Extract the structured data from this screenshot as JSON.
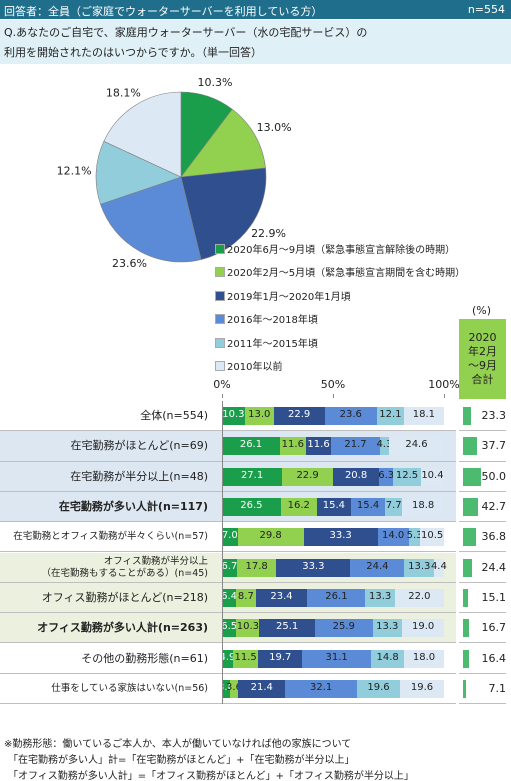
{
  "header": {
    "title": "回答者：全員（ご家庭でウォーターサーバーを利用している方）",
    "n": "n=554"
  },
  "question": [
    "Q.あなたのご自宅で、家庭用ウォーターサーバー（水の宅配サービス）の",
    "利用を開始されたのはいつからですか。（単一回答）"
  ],
  "chart_data": [
    {
      "type": "pie",
      "values": [
        10.3,
        13.0,
        22.9,
        23.6,
        12.1,
        18.1
      ],
      "value_labels": [
        "10.3%",
        "13.0%",
        "22.9%",
        "23.6%",
        "12.1%",
        "18.1%"
      ],
      "colors": [
        "#1b9e4b",
        "#92d050",
        "#2f4f8f",
        "#5b8ad6",
        "#92cddc",
        "#dce9f5"
      ]
    },
    {
      "type": "stacked_bar",
      "orientation": "horizontal",
      "categories": [
        "全体(n=554)",
        "在宅勤務がほとんど(n=69)",
        "在宅勤務が半分以上(n=48)",
        "在宅勤務が多い人計(n=117)",
        "在宅勤務とオフィス勤務が半々くらい(n=57)",
        "オフィス勤務が半分以上\n（在宅勤務もすることがある）(n=45)",
        "オフィス勤務がほとんど(n=218)",
        "オフィス勤務が多い人計(n=263)",
        "その他の勤務形態(n=61)",
        "仕事をしている家族はいない(n=56)"
      ],
      "bold": [
        false,
        false,
        false,
        true,
        false,
        false,
        false,
        true,
        false,
        false
      ],
      "row_colors": [
        "#ffffff",
        "#dde7f1",
        "#dde7f1",
        "#dde7f1",
        "#ffffff",
        "#ebf1de",
        "#ebf1de",
        "#ebf1de",
        "#ffffff",
        "#ffffff"
      ],
      "series": [
        {
          "name": "2020年6月～9月頃（緊急事態宣言解除後の時期）",
          "color": "#1b9e4b",
          "values": [
            10.3,
            26.1,
            27.1,
            26.5,
            7.0,
            6.7,
            6.4,
            6.5,
            4.9,
            3.6
          ],
          "value_labels": [
            "10.3",
            "26.1",
            "27.1",
            "26.5",
            "7.0",
            "6.7",
            "6.4",
            "6.5",
            "4.9",
            "3.6"
          ]
        },
        {
          "name": "2020年2月～5月頃（緊急事態宣言期間を含む時期）",
          "color": "#92d050",
          "values": [
            13.0,
            11.6,
            22.9,
            16.2,
            29.8,
            17.8,
            8.7,
            10.3,
            11.5,
            3.6
          ],
          "value_labels": [
            "13.0",
            "11.6",
            "22.9",
            "16.2",
            "29.8",
            "17.8",
            "8.7",
            "10.3",
            "11.5",
            "3.6"
          ]
        },
        {
          "name": "2019年1月～2020年1月頃",
          "color": "#2f4f8f",
          "values": [
            22.9,
            11.6,
            20.8,
            15.4,
            33.3,
            33.3,
            23.4,
            25.1,
            19.7,
            21.4
          ],
          "value_labels": [
            "22.9",
            "11.6",
            "20.8",
            "15.4",
            "33.3",
            "33.3",
            "23.4",
            "25.1",
            "19.7",
            "21.4"
          ]
        },
        {
          "name": "2016年～2018年頃",
          "color": "#5b8ad6",
          "values": [
            23.6,
            21.7,
            6.3,
            15.4,
            14.0,
            24.4,
            26.1,
            25.9,
            31.1,
            32.1
          ],
          "value_labels": [
            "23.6",
            "21.7",
            "6.3",
            "15.4",
            "14.0",
            "24.4",
            "26.1",
            "25.9",
            "31.1",
            "32.1"
          ]
        },
        {
          "name": "2011年～2015年頃",
          "color": "#92cddc",
          "values": [
            12.1,
            4.3,
            12.5,
            7.7,
            5.3,
            13.3,
            13.3,
            13.3,
            14.8,
            19.6
          ],
          "value_labels": [
            "12.1",
            "4.3",
            "12.5",
            "7.7",
            "5.3",
            "13.3",
            "13.3",
            "13.3",
            "14.8",
            "19.6"
          ]
        },
        {
          "name": "2010年以前",
          "color": "#dce9f5",
          "values": [
            18.1,
            24.6,
            10.4,
            18.8,
            10.5,
            4.4,
            22.0,
            19.0,
            18.0,
            19.6
          ],
          "value_labels": [
            "18.1",
            "24.6",
            "10.4",
            "18.8",
            "10.5",
            "4.4",
            "22.0",
            "19.0",
            "18.0",
            "19.6"
          ]
        }
      ],
      "xlim": [
        0,
        100
      ],
      "xticks": [
        {
          "value": 0,
          "label": "0%"
        },
        {
          "value": 50,
          "label": "50%"
        },
        {
          "value": 100,
          "label": "100%"
        }
      ],
      "unit": "(%)",
      "total": {
        "title": "2020年2月～9月合計",
        "color": "#4cbb70",
        "header_color": "#92d050",
        "values": [
          23.3,
          37.7,
          50.0,
          42.7,
          36.8,
          24.4,
          15.1,
          16.7,
          16.4,
          7.1
        ],
        "value_labels": [
          "23.3",
          "37.7",
          "50.0",
          "42.7",
          "36.8",
          "24.4",
          "15.1",
          "16.7",
          "16.4",
          "7.1"
        ]
      }
    }
  ],
  "footnotes": [
    "※勤務形態：働いているご本人か、本人が働いていなければ他の家族について",
    "「在宅勤務が多い人」計=「在宅勤務がほとんど」+「在宅勤務が半分以上」",
    "「オフィス勤務が多い人計」=「オフィス勤務がほとんど」+「オフィス勤務が半分以上」"
  ]
}
